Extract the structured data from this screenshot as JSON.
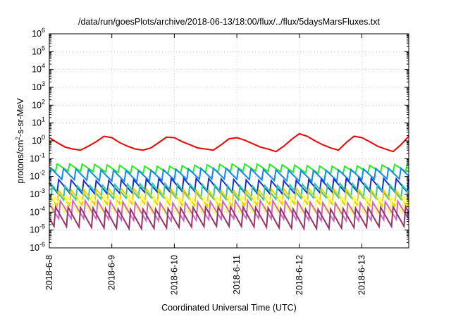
{
  "chart_data": {
    "type": "line",
    "title": "/data/run/goesPlots/archive/2018-06-13/18:00/flux/../flux/5daysMarsFluxes.txt",
    "xlabel": "Coordinated Universal Time (UTC)",
    "ylabel": {
      "main": "protons/cm",
      "sup": "2",
      "rest": "-s-sr-MeV"
    },
    "y_scale": "log",
    "ylim": [
      1e-06,
      1000000.0
    ],
    "xlim": [
      "2018-06-08T00:00",
      "2018-06-13T18:00"
    ],
    "grid": true,
    "legend": "none",
    "y_ticks": [
      {
        "value": 1e-06,
        "base": "10",
        "exp": "-6"
      },
      {
        "value": 1e-05,
        "base": "10",
        "exp": "-5"
      },
      {
        "value": 0.0001,
        "base": "10",
        "exp": "-4"
      },
      {
        "value": 0.001,
        "base": "10",
        "exp": "-3"
      },
      {
        "value": 0.01,
        "base": "10",
        "exp": "-2"
      },
      {
        "value": 0.1,
        "base": "10",
        "exp": "-1"
      },
      {
        "value": 1.0,
        "base": "10",
        "exp": "0"
      },
      {
        "value": 10.0,
        "base": "10",
        "exp": "1"
      },
      {
        "value": 100.0,
        "base": "10",
        "exp": "2"
      },
      {
        "value": 1000.0,
        "base": "10",
        "exp": "3"
      },
      {
        "value": 10000.0,
        "base": "10",
        "exp": "4"
      },
      {
        "value": 100000.0,
        "base": "10",
        "exp": "5"
      },
      {
        "value": 1000000.0,
        "base": "10",
        "exp": "6"
      }
    ],
    "x_ticks": [
      {
        "label": "2018-6-8",
        "value": "2018-06-08T00:00"
      },
      {
        "label": "2018-6-9",
        "value": "2018-06-09T00:00"
      },
      {
        "label": "2018-6-10",
        "value": "2018-06-10T00:00"
      },
      {
        "label": "2018-6-11",
        "value": "2018-06-11T00:00"
      },
      {
        "label": "2018-6-12",
        "value": "2018-06-12T00:00"
      },
      {
        "label": "2018-6-13",
        "value": "2018-06-13T00:00"
      }
    ],
    "series": [
      {
        "color": "#ee0000",
        "x": [
          "2018-06-08T00:00",
          "2018-06-08T03:00",
          "2018-06-08T06:00",
          "2018-06-08T09:00",
          "2018-06-08T12:00",
          "2018-06-08T15:00",
          "2018-06-08T18:00",
          "2018-06-08T21:00",
          "2018-06-09T00:00",
          "2018-06-09T03:00",
          "2018-06-09T06:00",
          "2018-06-09T09:00",
          "2018-06-09T12:00",
          "2018-06-09T15:00",
          "2018-06-09T18:00",
          "2018-06-09T21:00",
          "2018-06-10T00:00",
          "2018-06-10T03:00",
          "2018-06-10T06:00",
          "2018-06-10T09:00",
          "2018-06-10T12:00",
          "2018-06-10T15:00",
          "2018-06-10T18:00",
          "2018-06-10T21:00",
          "2018-06-11T00:00",
          "2018-06-11T03:00",
          "2018-06-11T06:00",
          "2018-06-11T09:00",
          "2018-06-11T12:00",
          "2018-06-11T15:00",
          "2018-06-11T18:00",
          "2018-06-11T21:00",
          "2018-06-12T00:00",
          "2018-06-12T03:00",
          "2018-06-12T06:00",
          "2018-06-12T09:00",
          "2018-06-12T12:00",
          "2018-06-12T15:00",
          "2018-06-12T18:00",
          "2018-06-12T21:00",
          "2018-06-13T00:00",
          "2018-06-13T03:00",
          "2018-06-13T06:00",
          "2018-06-13T09:00",
          "2018-06-13T12:00",
          "2018-06-13T15:00",
          "2018-06-13T18:00"
        ],
        "values": [
          1.5,
          0.8,
          0.45,
          0.35,
          0.3,
          0.5,
          0.9,
          1.8,
          1.5,
          0.8,
          0.5,
          0.35,
          0.3,
          0.4,
          0.8,
          1.6,
          1.5,
          0.9,
          0.6,
          0.4,
          0.35,
          0.3,
          0.6,
          1.3,
          1.5,
          1.1,
          0.7,
          0.45,
          0.35,
          0.25,
          0.5,
          1.2,
          2.5,
          1.8,
          1.0,
          0.6,
          0.4,
          0.3,
          0.8,
          1.8,
          1.5,
          0.9,
          0.5,
          0.35,
          0.25,
          0.6,
          1.8
        ]
      },
      {
        "color": "#22ee22",
        "base": 0.028,
        "amp": 1.7
      },
      {
        "color": "#1188ee",
        "base": 0.012,
        "amp": 2.2
      },
      {
        "color": "#1133cc",
        "base": 0.0032,
        "amp": 2.6
      },
      {
        "color": "#22ccaa",
        "base": 0.0014,
        "amp": 2.8
      },
      {
        "color": "#eecc00",
        "base": 0.0006,
        "amp": 3.2
      },
      {
        "color": "#ffff55",
        "base": 0.00028,
        "amp": 3.4
      },
      {
        "color": "#cc66cc",
        "base": 0.00011,
        "amp": 3.8
      },
      {
        "color": "#993366",
        "base": 5.5e-05,
        "amp": 4.2
      }
    ]
  }
}
